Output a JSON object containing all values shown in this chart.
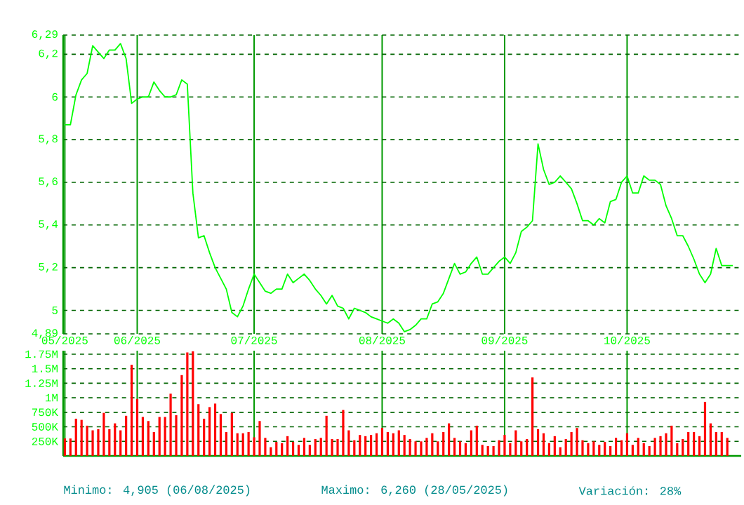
{
  "chart_data": [
    {
      "type": "line",
      "categories": [
        "05/2025",
        null,
        null,
        null,
        null,
        null,
        null,
        null,
        null,
        null,
        null,
        null,
        null,
        "06/2025",
        null,
        null,
        null,
        null,
        null,
        null,
        null,
        null,
        null,
        null,
        null,
        null,
        null,
        null,
        null,
        null,
        null,
        null,
        null,
        null,
        "07/2025",
        null,
        null,
        null,
        null,
        null,
        null,
        null,
        null,
        null,
        null,
        null,
        null,
        null,
        null,
        null,
        null,
        null,
        null,
        null,
        null,
        null,
        null,
        "08/2025",
        null,
        null,
        null,
        null,
        null,
        null,
        null,
        null,
        null,
        null,
        null,
        null,
        null,
        null,
        null,
        null,
        null,
        null,
        null,
        null,
        null,
        "09/2025",
        null,
        null,
        null,
        null,
        null,
        null,
        null,
        null,
        null,
        null,
        null,
        null,
        null,
        null,
        null,
        null,
        null,
        null,
        null,
        null,
        null,
        "10/2025",
        null,
        null,
        null,
        null,
        null,
        null,
        null,
        null,
        null,
        null,
        null,
        null,
        null,
        null,
        null,
        null,
        null,
        null,
        null
      ],
      "series": [
        {
          "color": "#00ff00",
          "values": [
            5.87,
            5.87,
            6.01,
            6.08,
            6.11,
            6.24,
            6.21,
            6.18,
            6.22,
            6.22,
            6.25,
            6.18,
            5.97,
            5.99,
            6.0,
            6.0,
            6.07,
            6.03,
            6.0,
            6.0,
            6.01,
            6.08,
            6.06,
            5.55,
            5.34,
            5.35,
            5.27,
            5.2,
            5.15,
            5.1,
            4.99,
            4.97,
            5.02,
            5.1,
            5.17,
            5.13,
            5.09,
            5.08,
            5.1,
            5.1,
            5.17,
            5.13,
            5.15,
            5.17,
            5.14,
            5.1,
            5.07,
            5.03,
            5.07,
            5.02,
            5.01,
            4.96,
            5.01,
            5.0,
            4.99,
            4.97,
            4.96,
            4.95,
            4.94,
            4.96,
            4.94,
            4.9,
            4.91,
            4.93,
            4.96,
            4.96,
            5.03,
            5.04,
            5.08,
            5.15,
            5.22,
            5.17,
            5.18,
            5.22,
            5.25,
            5.17,
            5.17,
            5.2,
            5.23,
            5.25,
            5.22,
            5.27,
            5.37,
            5.39,
            5.42,
            5.78,
            5.66,
            5.59,
            5.6,
            5.63,
            5.6,
            5.57,
            5.5,
            5.42,
            5.42,
            5.4,
            5.43,
            5.41,
            5.51,
            5.52,
            5.6,
            5.63,
            5.55,
            5.55,
            5.63,
            5.61,
            5.61,
            5.59,
            5.49,
            5.43,
            5.35,
            5.35,
            5.3,
            5.24,
            5.17,
            5.13,
            5.17,
            5.29,
            5.21,
            5.21,
            5.21
          ]
        }
      ],
      "ylim": [
        4.89,
        6.29
      ],
      "yticks": [
        {
          "value": 6.29,
          "label": "6,29"
        },
        {
          "value": 6.2,
          "label": "6,2"
        },
        6,
        {
          "value": 5.8,
          "label": "5,8"
        },
        {
          "value": 5.6,
          "label": "5,6"
        },
        {
          "value": 5.4,
          "label": "5,4"
        },
        {
          "value": 5.2,
          "label": "5,2"
        },
        5,
        {
          "value": 4.89,
          "label": "4,89"
        }
      ],
      "grid": true
    },
    {
      "type": "bar",
      "categories": [
        null,
        null,
        null,
        null,
        null,
        null,
        null,
        null,
        null,
        null,
        null,
        null,
        null,
        null,
        null,
        null,
        null,
        null,
        null,
        null,
        null,
        null,
        null,
        null,
        null,
        null,
        null,
        null,
        null,
        null,
        null,
        null,
        null,
        null,
        null,
        null,
        null,
        null,
        null,
        null,
        null,
        null,
        null,
        null,
        null,
        null,
        null,
        null,
        null,
        null,
        null,
        null,
        null,
        null,
        null,
        null,
        null,
        null,
        null,
        null,
        null,
        null,
        null,
        null,
        null,
        null,
        null,
        null,
        null,
        null,
        null,
        null,
        null,
        null,
        null,
        null,
        null,
        null,
        null,
        null,
        null,
        null,
        null,
        null,
        null,
        null,
        null,
        null,
        null,
        null,
        null,
        null,
        null,
        null,
        null,
        null,
        null,
        null,
        null,
        null,
        null,
        null,
        null,
        null,
        null,
        null,
        null,
        null,
        null,
        null,
        null,
        null,
        null,
        null,
        null,
        null,
        null,
        null,
        null,
        null,
        null
      ],
      "series": [
        {
          "color": "#ff0000",
          "values": [
            300000,
            300000,
            640000,
            620000,
            520000,
            440000,
            460000,
            740000,
            460000,
            560000,
            440000,
            690000,
            1570000,
            980000,
            670000,
            600000,
            410000,
            670000,
            670000,
            1070000,
            700000,
            1390000,
            1780000,
            1800000,
            890000,
            640000,
            840000,
            900000,
            720000,
            410000,
            740000,
            390000,
            390000,
            410000,
            320000,
            600000,
            310000,
            150000,
            240000,
            220000,
            340000,
            240000,
            190000,
            310000,
            190000,
            290000,
            310000,
            690000,
            290000,
            290000,
            790000,
            440000,
            270000,
            360000,
            340000,
            360000,
            390000,
            480000,
            410000,
            390000,
            440000,
            360000,
            290000,
            250000,
            250000,
            310000,
            390000,
            250000,
            410000,
            560000,
            310000,
            250000,
            220000,
            440000,
            520000,
            190000,
            170000,
            170000,
            270000,
            360000,
            220000,
            440000,
            250000,
            290000,
            1350000,
            460000,
            390000,
            220000,
            340000,
            150000,
            290000,
            410000,
            480000,
            270000,
            220000,
            250000,
            190000,
            240000,
            170000,
            310000,
            270000,
            390000,
            190000,
            310000,
            220000,
            170000,
            310000,
            340000,
            390000,
            520000,
            220000,
            290000,
            410000,
            410000,
            340000,
            930000,
            560000,
            410000,
            410000,
            310000,
            null
          ]
        }
      ],
      "ylim": [
        0,
        1810000
      ],
      "yticks": [
        {
          "value": 250000,
          "label": "250K"
        },
        {
          "value": 500000,
          "label": "500K"
        },
        {
          "value": 750000,
          "label": "750K"
        },
        {
          "value": 1000000,
          "label": "1M"
        },
        {
          "value": 1250000,
          "label": "1.25M"
        },
        {
          "value": 1500000,
          "label": "1.5M"
        },
        {
          "value": 1750000,
          "label": "1.75M"
        }
      ],
      "grid": true,
      "annotations": [
        "Minimo: 4,905 (06/08/2025)",
        "Maximo: 6,260 (28/05/2025)",
        "Variación: 28%"
      ]
    }
  ]
}
